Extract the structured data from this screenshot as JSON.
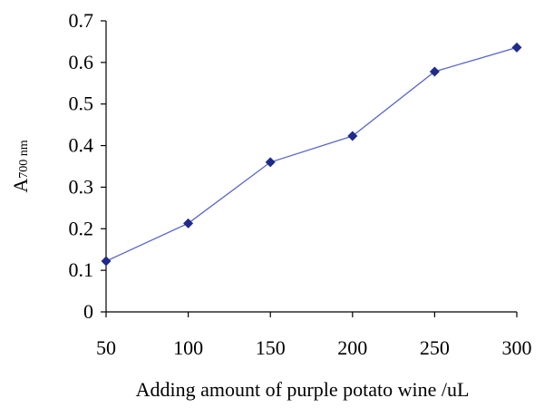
{
  "chart_data": {
    "type": "line",
    "title": "",
    "xlabel": "Adding amount of purple potato wine /uL",
    "ylabel_main": "A",
    "ylabel_sub": "700 nm",
    "x": [
      50,
      100,
      150,
      200,
      250,
      300
    ],
    "series": [
      {
        "values": [
          0.122,
          0.213,
          0.36,
          0.423,
          0.578,
          0.636
        ],
        "color": "#1f2a8a",
        "line_color": "#5566cc",
        "marker": "diamond"
      }
    ],
    "xlim": [
      50,
      300
    ],
    "ylim": [
      0,
      0.7
    ],
    "x_ticks": [
      "50",
      "100",
      "150",
      "200",
      "250",
      "300"
    ],
    "y_ticks": [
      "0",
      "0.1",
      "0.2",
      "0.3",
      "0.4",
      "0.5",
      "0.6",
      "0.7"
    ],
    "grid": false,
    "legend": "none"
  }
}
